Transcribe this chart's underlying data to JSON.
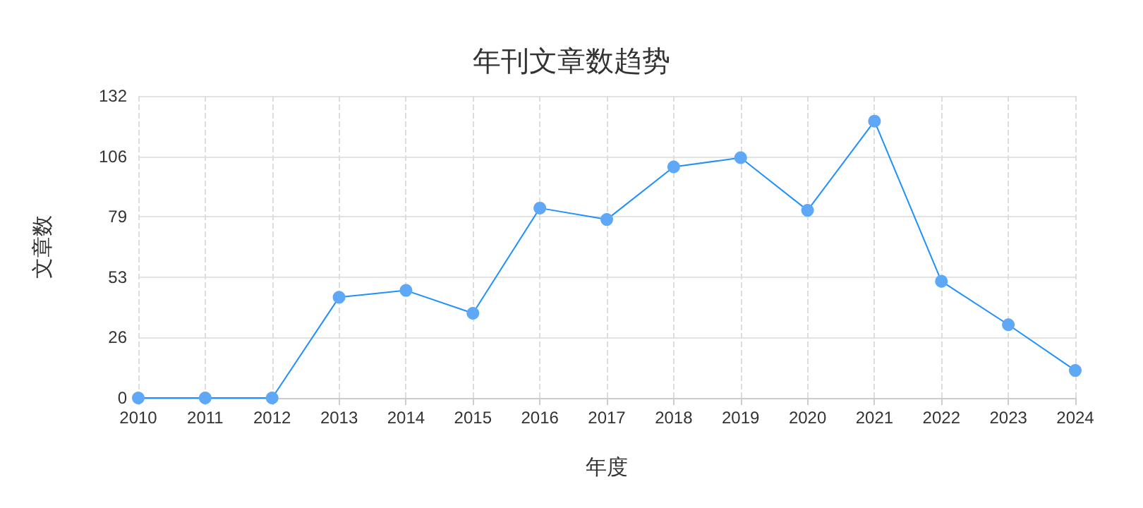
{
  "chart_data": {
    "type": "line",
    "title": "年刊文章数趋势",
    "xlabel": "年度",
    "ylabel": "文章数",
    "categories": [
      "2010",
      "2011",
      "2012",
      "2013",
      "2014",
      "2015",
      "2016",
      "2017",
      "2018",
      "2019",
      "2020",
      "2021",
      "2022",
      "2023",
      "2024"
    ],
    "series": [
      {
        "color": "#1e90ff",
        "values": [
          0,
          0,
          0,
          44,
          47,
          37,
          83,
          78,
          101,
          105,
          82,
          121,
          51,
          32,
          12
        ]
      }
    ],
    "ylim": [
      0,
      132
    ],
    "yticks": [
      0,
      {
        "value": 26.4,
        "label": "26"
      },
      {
        "value": 52.8,
        "label": "53"
      },
      {
        "value": 79.2,
        "label": "79"
      },
      {
        "value": 105.6,
        "label": "106"
      },
      132
    ],
    "grid": true,
    "marker": "circle",
    "line_style": "solid"
  }
}
